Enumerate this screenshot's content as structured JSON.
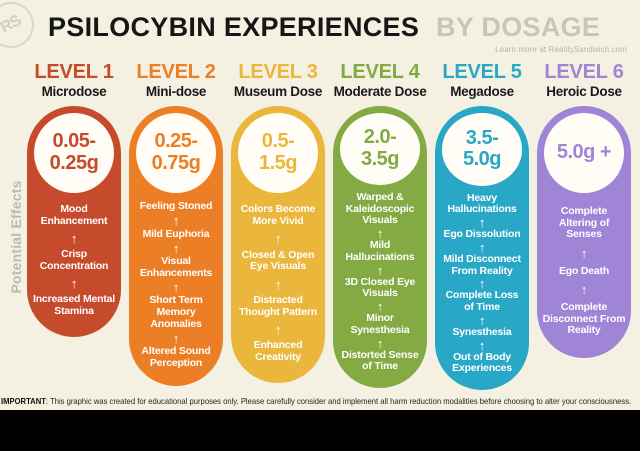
{
  "header": {
    "title": "PSILOCYBIN EXPERIENCES",
    "title_suffix": "BY DOSAGE",
    "tagline": "Learn more at RealitySandwich.com",
    "stamp_text": "RS"
  },
  "side_label": "Potential Effects",
  "ui": {
    "arrow_glyph": "↑"
  },
  "colors": {
    "background": "#f4f1e2",
    "title": "#161616",
    "title_suffix": "#cac5b8",
    "footer_bar": "#000000"
  },
  "levels": [
    {
      "level": "LEVEL 1",
      "dose_name": "Microdose",
      "color": "#c64a2c",
      "dose_lines": [
        "0.05-",
        "0.25g"
      ],
      "pill_height": 231,
      "effects": [
        "Mood Enhancement",
        "Crisp Concentration",
        "Increased Mental Stamina"
      ]
    },
    {
      "level": "LEVEL 2",
      "dose_name": "Mini-dose",
      "color": "#ec7e25",
      "dose_lines": [
        "0.25-",
        "0.75g"
      ],
      "pill_height": 280,
      "effects": [
        "Feeling Stoned",
        "Mild Euphoria",
        "Visual Enhancements",
        "Short Term Memory Anomalies",
        "Altered Sound Perception"
      ]
    },
    {
      "level": "LEVEL 3",
      "dose_name": "Museum Dose",
      "color": "#eab63c",
      "dose_lines": [
        "0.5-",
        "1.5g"
      ],
      "pill_height": 277,
      "effects": [
        "Colors Become More Vivid",
        "Closed & Open Eye Visuals",
        "Distracted Thought Pattern",
        "Enhanced Creativity"
      ]
    },
    {
      "level": "LEVEL 4",
      "dose_name": "Moderate Dose",
      "color": "#83aa43",
      "dose_lines": [
        "2.0-",
        "3.5g"
      ],
      "pill_height": 282,
      "effects": [
        "Warped & Kaleidoscopic Visuals",
        "Mild Hallucinations",
        "3D Closed Eye Visuals",
        "Minor Synesthesia",
        "Distorted Sense of Time"
      ]
    },
    {
      "level": "LEVEL 5",
      "dose_name": "Megadose",
      "color": "#28a8c6",
      "dose_lines": [
        "3.5-",
        "5.0g"
      ],
      "pill_height": 284,
      "effects": [
        "Heavy Hallucinations",
        "Ego Dissolution",
        "Mild Disconnect From Reality",
        "Complete Loss of Time",
        "Synesthesia",
        "Out of Body Experiences"
      ]
    },
    {
      "level": "LEVEL 6",
      "dose_name": "Heroic Dose",
      "color": "#a084d6",
      "dose_lines": [
        "5.0g +"
      ],
      "pill_height": 252,
      "effects": [
        "Complete Altering of Senses",
        "Ego Death",
        "Complete Disconnect From Reality"
      ]
    }
  ],
  "footer": {
    "important_label": "IMPORTANT",
    "disclaimer": ": This graphic was created for educational purposes only. Please carefully consider and implement all harm reduction modalities before choosing to alter your consciousness."
  }
}
